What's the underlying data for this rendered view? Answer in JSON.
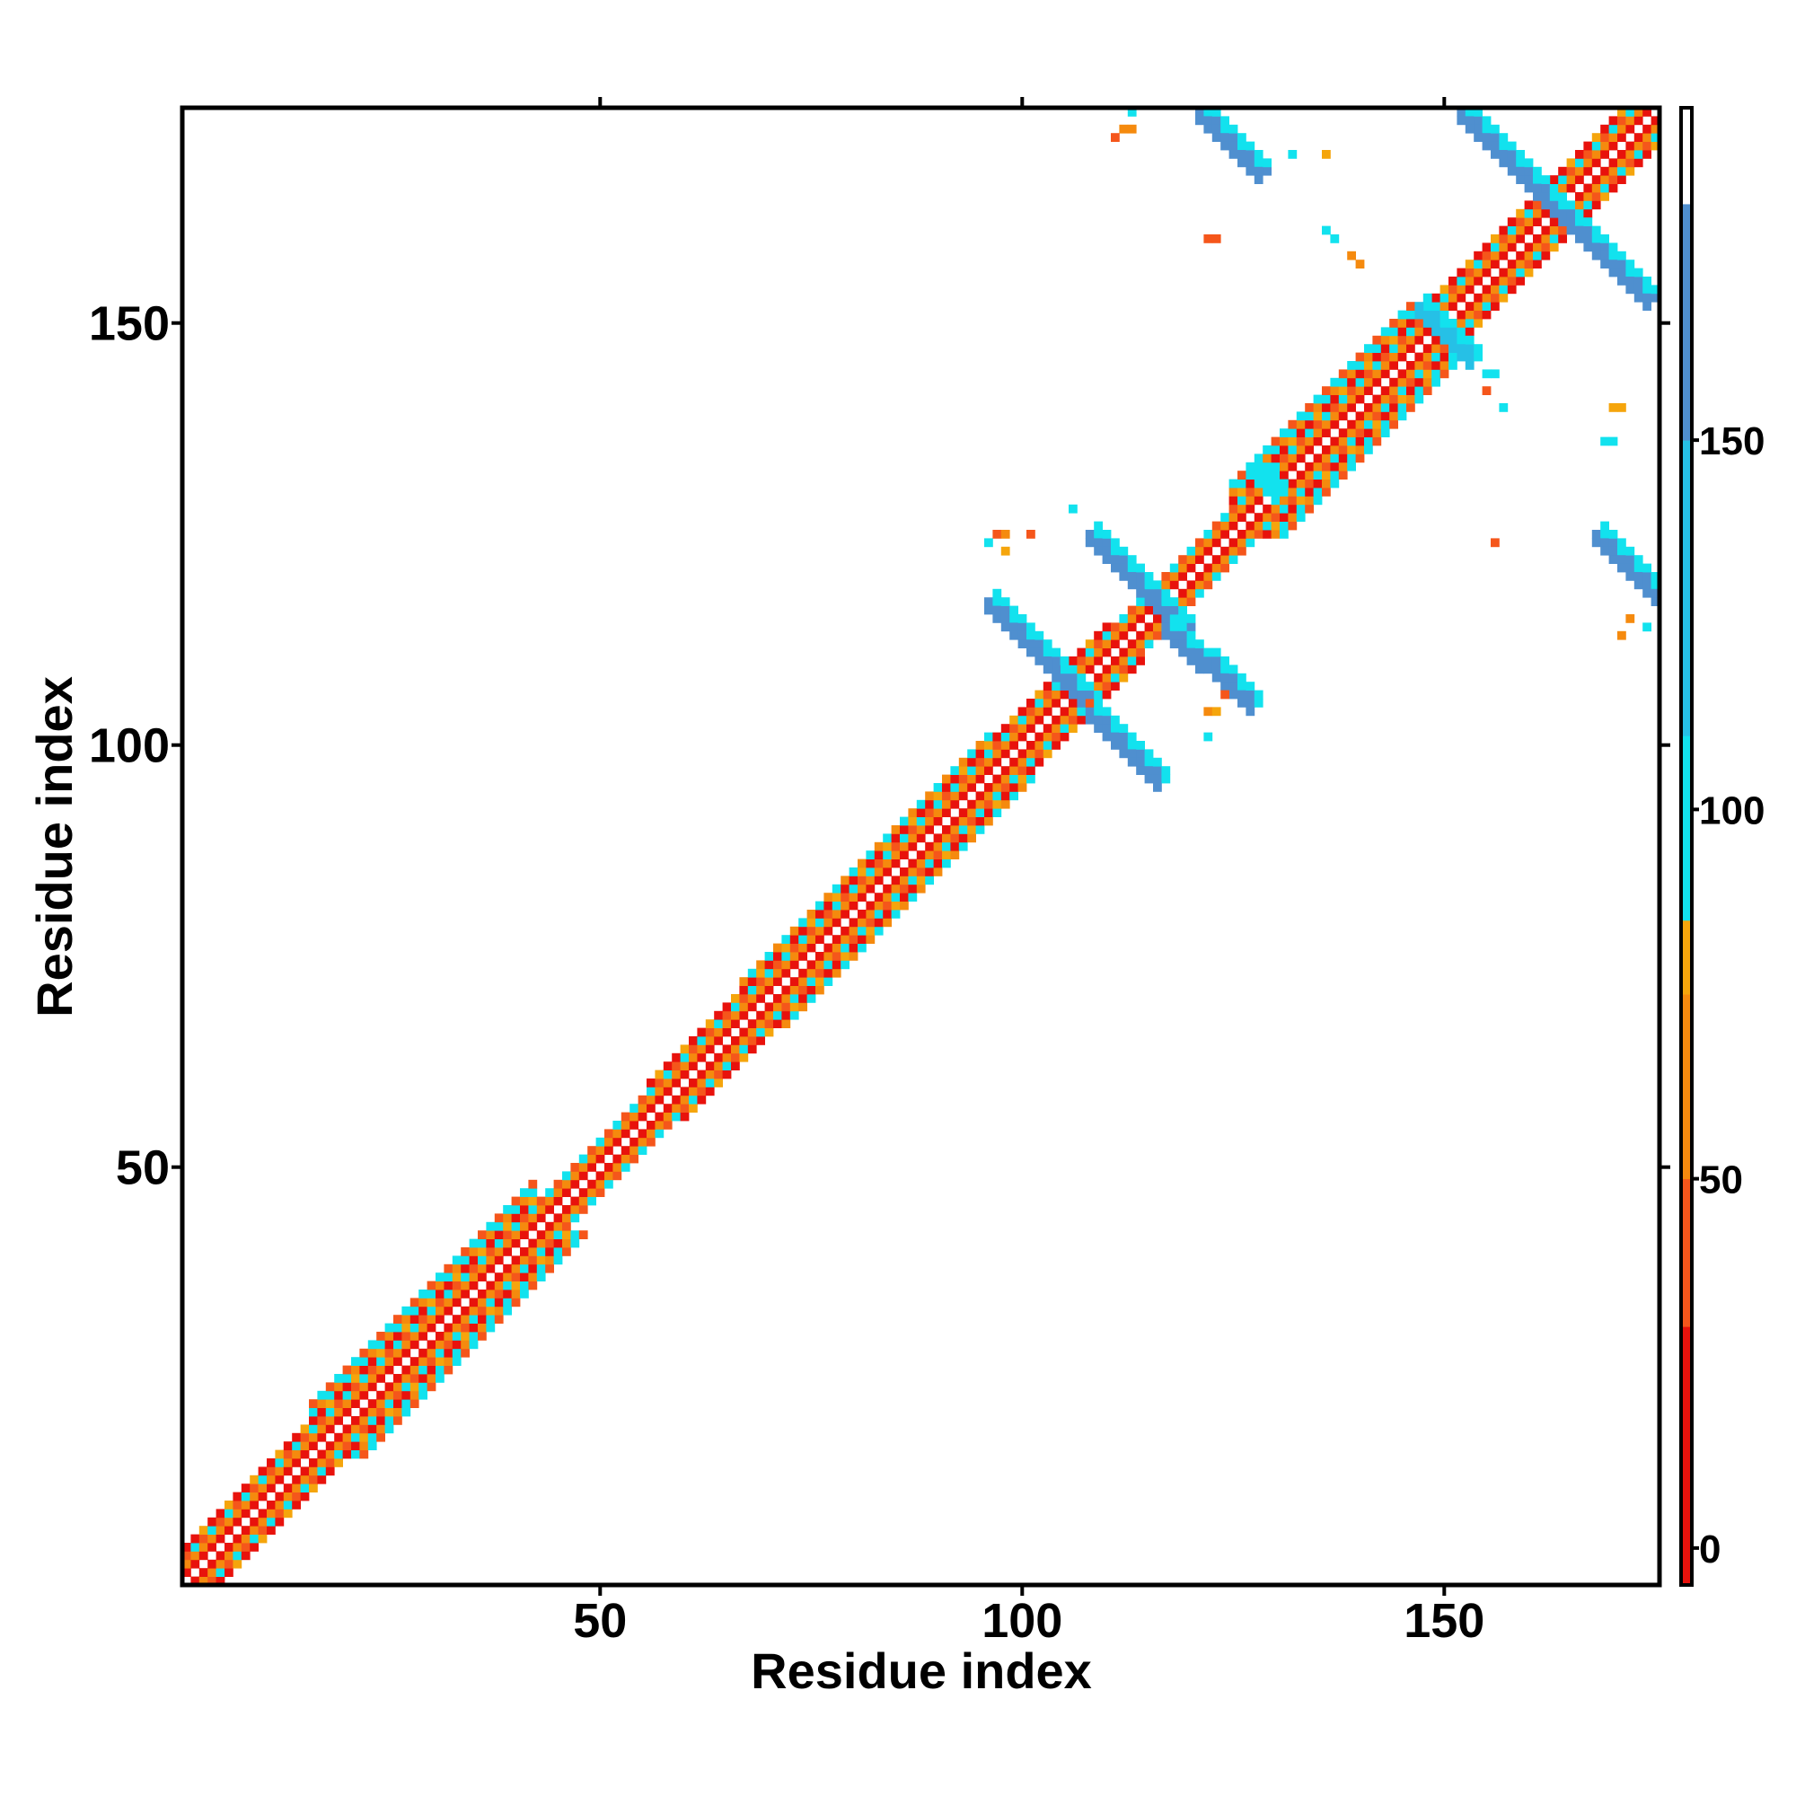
{
  "chart_data": {
    "type": "heatmap",
    "title": "",
    "xlabel": "Residue index",
    "ylabel": "Residue index",
    "xlim": [
      1,
      175
    ],
    "ylim": [
      1,
      175
    ],
    "x_ticks": [
      50,
      100,
      150
    ],
    "y_ticks": [
      50,
      100,
      150
    ],
    "grid": false,
    "colorbar": {
      "position": "right",
      "ticks": [
        0,
        50,
        100,
        150
      ],
      "range": [
        -5,
        195
      ],
      "bands": [
        {
          "from": -5,
          "to": 30,
          "color": "#e8120c"
        },
        {
          "from": 30,
          "to": 50,
          "color": "#f5561b"
        },
        {
          "from": 50,
          "to": 75,
          "color": "#f58a0e"
        },
        {
          "from": 75,
          "to": 85,
          "color": "#f5a50c"
        },
        {
          "from": 85,
          "to": 110,
          "color": "#12e2ee"
        },
        {
          "from": 110,
          "to": 150,
          "color": "#26c0e6"
        },
        {
          "from": 150,
          "to": 182,
          "color": "#4f8fcf"
        },
        {
          "from": 182,
          "to": 195,
          "color": "#ffffff"
        }
      ]
    },
    "diagonal_band": [
      {
        "from": 1,
        "to": 8,
        "halfwidth": 4
      },
      {
        "from": 9,
        "to": 15,
        "halfwidth": 4
      },
      {
        "from": 16,
        "to": 42,
        "halfwidth": 6
      },
      {
        "from": 43,
        "to": 55,
        "halfwidth": 3
      },
      {
        "from": 56,
        "to": 66,
        "halfwidth": 4
      },
      {
        "from": 67,
        "to": 85,
        "halfwidth": 5
      },
      {
        "from": 86,
        "to": 96,
        "halfwidth": 5
      },
      {
        "from": 97,
        "to": 110,
        "halfwidth": 4
      },
      {
        "from": 111,
        "to": 124,
        "halfwidth": 3
      },
      {
        "from": 125,
        "to": 146,
        "halfwidth": 6
      },
      {
        "from": 147,
        "to": 175,
        "halfwidth": 4
      }
    ],
    "strand_pairings": [
      {
        "x": [
          96,
          107
        ],
        "y": [
          117,
          106
        ],
        "value": 150
      },
      {
        "x": [
          108,
          116
        ],
        "y": [
          104,
          96
        ],
        "value": 150
      },
      {
        "x": [
          108,
          119
        ],
        "y": [
          125,
          114
        ],
        "value": 150
      },
      {
        "x": [
          117,
          127
        ],
        "y": [
          114,
          105
        ],
        "value": 150
      },
      {
        "x": [
          121,
          128
        ],
        "y": [
          175,
          168
        ],
        "value": 150
      },
      {
        "x": [
          152,
          163
        ],
        "y": [
          175,
          164
        ],
        "value": 150
      },
      {
        "x": [
          163,
          174
        ],
        "y": [
          164,
          153
        ],
        "value": 150
      },
      {
        "x": [
          147,
          153
        ],
        "y": [
          152,
          146
        ],
        "value": 130
      },
      {
        "x": [
          168,
          175
        ],
        "y": [
          125,
          118
        ],
        "value": 150
      },
      {
        "x": [
          127,
          130
        ],
        "y": [
          133,
          130
        ],
        "value": 100
      }
    ],
    "scattered_cells": [
      {
        "x": 111,
        "y": 172,
        "value": 40
      },
      {
        "x": 112,
        "y": 173,
        "value": 70
      },
      {
        "x": 113,
        "y": 173,
        "value": 70
      },
      {
        "x": 113,
        "y": 175,
        "value": 100
      },
      {
        "x": 132,
        "y": 170,
        "value": 100
      },
      {
        "x": 136,
        "y": 170,
        "value": 75
      },
      {
        "x": 122,
        "y": 160,
        "value": 40
      },
      {
        "x": 123,
        "y": 160,
        "value": 40
      },
      {
        "x": 136,
        "y": 161,
        "value": 100
      },
      {
        "x": 137,
        "y": 160,
        "value": 100
      },
      {
        "x": 139,
        "y": 158,
        "value": 60
      },
      {
        "x": 140,
        "y": 157,
        "value": 60
      },
      {
        "x": 155,
        "y": 144,
        "value": 100
      },
      {
        "x": 156,
        "y": 144,
        "value": 100
      },
      {
        "x": 155,
        "y": 142,
        "value": 40
      },
      {
        "x": 157,
        "y": 140,
        "value": 100
      },
      {
        "x": 170,
        "y": 140,
        "value": 75
      },
      {
        "x": 171,
        "y": 140,
        "value": 75
      },
      {
        "x": 169,
        "y": 136,
        "value": 100
      },
      {
        "x": 170,
        "y": 136,
        "value": 100
      },
      {
        "x": 156,
        "y": 124,
        "value": 40
      },
      {
        "x": 96,
        "y": 124,
        "value": 100
      },
      {
        "x": 97,
        "y": 125,
        "value": 40
      },
      {
        "x": 98,
        "y": 125,
        "value": 60
      },
      {
        "x": 98,
        "y": 123,
        "value": 75
      },
      {
        "x": 101,
        "y": 125,
        "value": 40
      },
      {
        "x": 106,
        "y": 128,
        "value": 100
      },
      {
        "x": 124,
        "y": 106,
        "value": 40
      },
      {
        "x": 122,
        "y": 104,
        "value": 60
      },
      {
        "x": 123,
        "y": 104,
        "value": 75
      },
      {
        "x": 122,
        "y": 101,
        "value": 100
      },
      {
        "x": 171,
        "y": 113,
        "value": 60
      },
      {
        "x": 172,
        "y": 115,
        "value": 70
      },
      {
        "x": 174,
        "y": 114,
        "value": 100
      }
    ]
  }
}
